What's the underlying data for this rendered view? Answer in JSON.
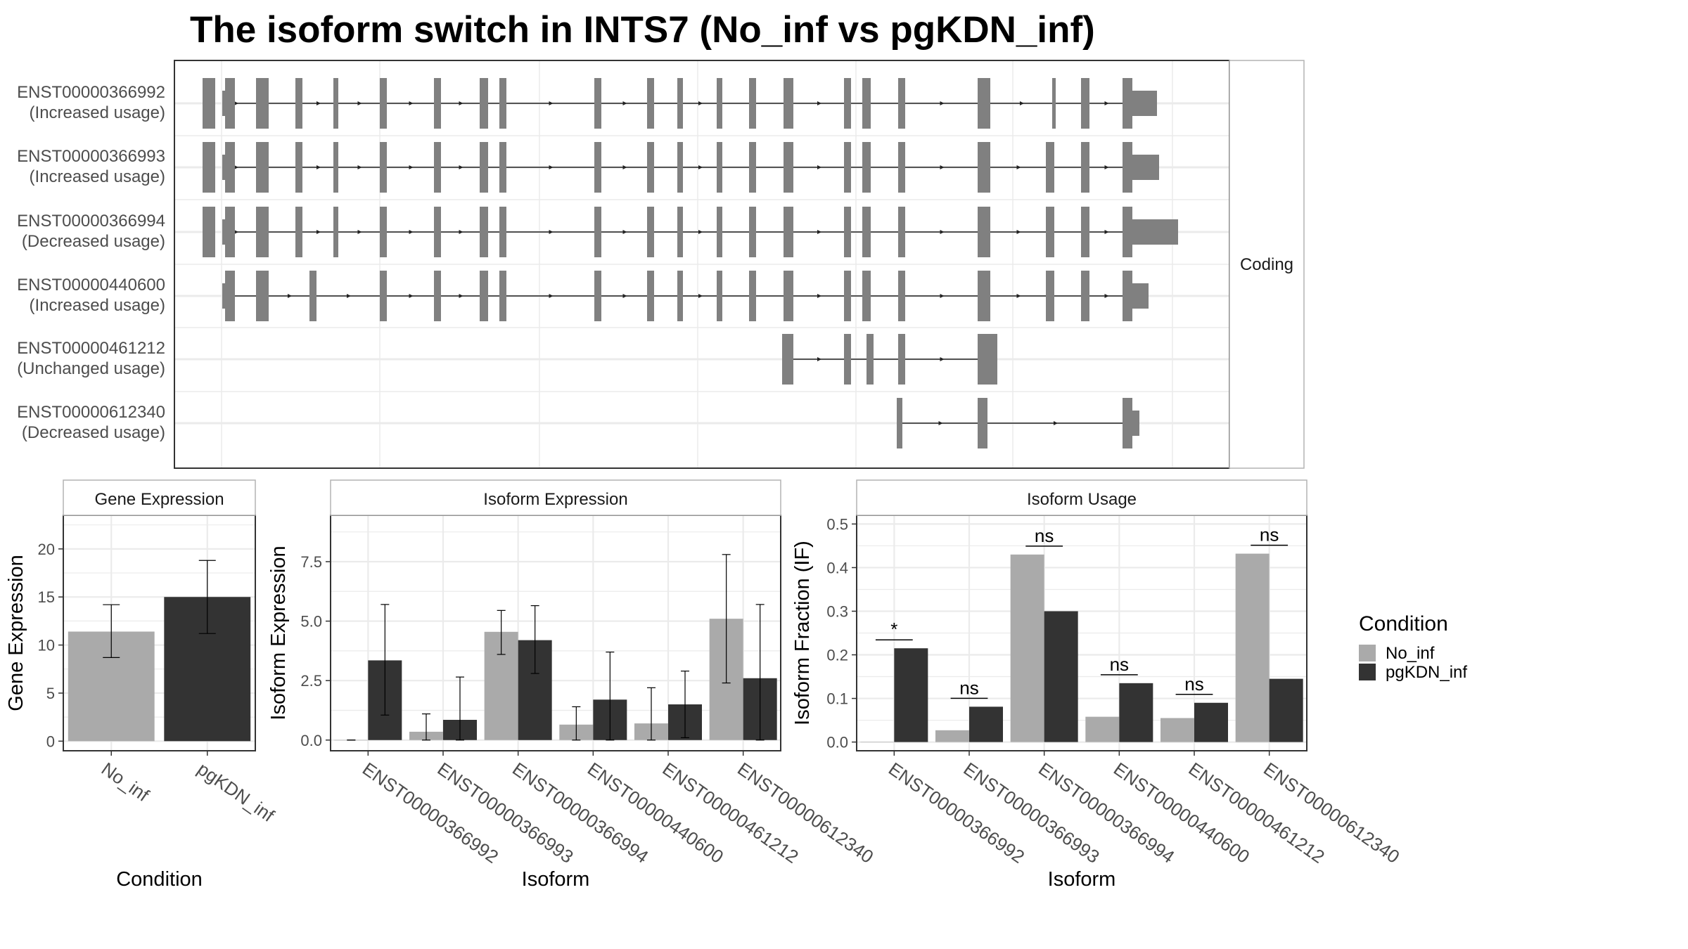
{
  "title": "The isoform switch in INTS7 (No_inf vs pgKDN_inf)",
  "colors": {
    "no_inf": "#aaaaaa",
    "pgkdn_inf": "#333333",
    "exon": "#808080",
    "grid": "#ebebeb",
    "panel_border": "#333333",
    "strip_border": "#b3b3b3"
  },
  "structure_panel": {
    "facet_label": "Coding",
    "isoforms": [
      {
        "id": "ENST00000366992",
        "usage": "(Increased usage)"
      },
      {
        "id": "ENST00000366993",
        "usage": "(Increased usage)"
      },
      {
        "id": "ENST00000366994",
        "usage": "(Decreased usage)"
      },
      {
        "id": "ENST00000440600",
        "usage": "(Increased usage)"
      },
      {
        "id": "ENST00000461212",
        "usage": "(Unchanged usage)"
      },
      {
        "id": "ENST00000612340",
        "usage": "(Decreased usage)"
      }
    ]
  },
  "legend": {
    "title": "Condition",
    "items": [
      "No_inf",
      "pgKDN_inf"
    ]
  },
  "chart_data": [
    {
      "type": "bar",
      "panel_title": "Gene Expression",
      "xlabel": "Condition",
      "ylabel": "Gene Expression",
      "categories": [
        "No_inf",
        "pgKDN_inf"
      ],
      "values": [
        11.4,
        15.0
      ],
      "error_low": [
        8.7,
        11.2
      ],
      "error_high": [
        14.2,
        18.8
      ],
      "ylim": [
        -1,
        23.5
      ],
      "yticks": [
        0,
        5,
        10,
        15,
        20
      ],
      "ytick_labels": [
        "0",
        "5",
        "10",
        "15",
        "20"
      ]
    },
    {
      "type": "bar",
      "panel_title": "Isoform Expression",
      "xlabel": "Isoform",
      "ylabel": "Isoform Expression",
      "categories": [
        "ENST00000366992",
        "ENST00000366993",
        "ENST00000366994",
        "ENST00000440600",
        "ENST00000461212",
        "ENST00000612340"
      ],
      "series": [
        {
          "name": "No_inf",
          "values": [
            0.0,
            0.35,
            4.55,
            0.65,
            0.7,
            5.1
          ],
          "error_low": [
            0.0,
            0.0,
            3.6,
            0.0,
            0.0,
            2.4
          ],
          "error_high": [
            0.0,
            1.1,
            5.45,
            1.4,
            2.2,
            7.8
          ]
        },
        {
          "name": "pgKDN_inf",
          "values": [
            3.35,
            0.85,
            4.2,
            1.7,
            1.5,
            2.6
          ],
          "error_low": [
            1.05,
            0.0,
            2.8,
            0.0,
            0.1,
            0.0
          ],
          "error_high": [
            5.7,
            2.65,
            5.65,
            3.7,
            2.9,
            5.7
          ]
        }
      ],
      "ylim": [
        -0.45,
        9.45
      ],
      "yticks": [
        0,
        2.5,
        5,
        7.5
      ],
      "ytick_labels": [
        "0.0",
        "2.5",
        "5.0",
        "7.5"
      ]
    },
    {
      "type": "bar",
      "panel_title": "Isoform Usage",
      "xlabel": "Isoform",
      "ylabel": "Isoform Fraction (IF)",
      "categories": [
        "ENST00000366992",
        "ENST00000366993",
        "ENST00000366994",
        "ENST00000440600",
        "ENST00000461212",
        "ENST00000612340"
      ],
      "series": [
        {
          "name": "No_inf",
          "values": [
            0.0,
            0.027,
            0.43,
            0.058,
            0.055,
            0.432
          ]
        },
        {
          "name": "pgKDN_inf",
          "values": [
            0.215,
            0.081,
            0.3,
            0.135,
            0.09,
            0.145
          ]
        }
      ],
      "significance": [
        "*",
        "ns",
        "ns",
        "ns",
        "ns",
        "ns"
      ],
      "ylim": [
        -0.02,
        0.52
      ],
      "yticks": [
        0,
        0.1,
        0.2,
        0.3,
        0.4,
        0.5
      ],
      "ytick_labels": [
        "0.0",
        "0.1",
        "0.2",
        "0.3",
        "0.4",
        "0.5"
      ]
    }
  ]
}
